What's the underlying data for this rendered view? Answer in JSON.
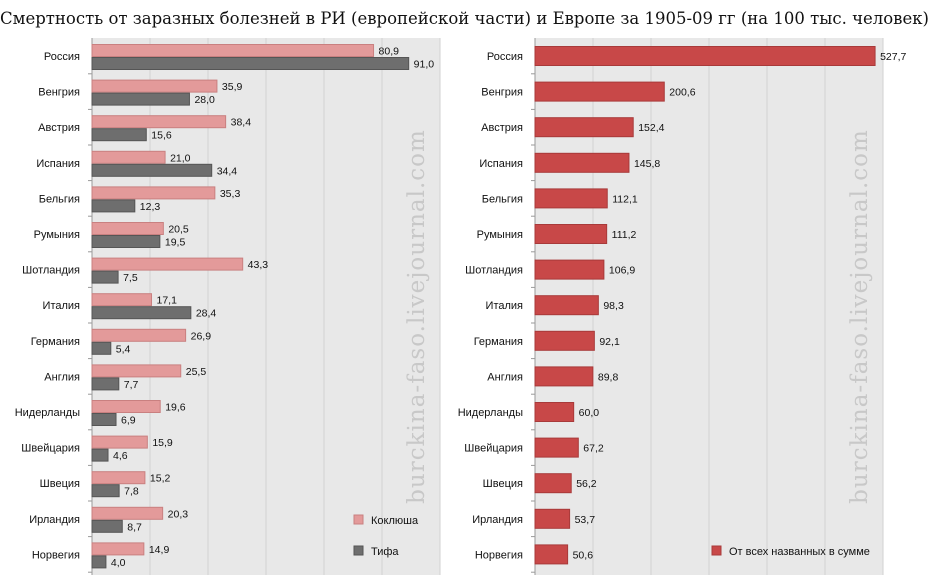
{
  "title": "Смертность от заразных болезней в РИ (европейской части) и Европе за 1905-09 гг (на 100 тыс. человек)",
  "watermark": "burckina-faso.livejournal.com",
  "colors": {
    "pertussis": "#e39a9a",
    "typhus": "#6e6e6e",
    "total": "#c84848",
    "plot_bg": "#e8e8e8",
    "grid": "#d2d2d2"
  },
  "chart_data": [
    {
      "type": "bar",
      "orientation": "horizontal",
      "categories": [
        "Россия",
        "Венгрия",
        "Австрия",
        "Испания",
        "Бельгия",
        "Румыния",
        "Шотландия",
        "Италия",
        "Германия",
        "Англия",
        "Нидерланды",
        "Швейцария",
        "Швеция",
        "Ирландия",
        "Норвегия"
      ],
      "series": [
        {
          "name": "Коклюша",
          "values": [
            80.9,
            35.9,
            38.4,
            21.0,
            35.3,
            20.5,
            43.3,
            17.1,
            26.9,
            25.5,
            19.6,
            15.9,
            15.2,
            20.3,
            14.9
          ]
        },
        {
          "name": "Тифа",
          "values": [
            91.0,
            28.0,
            15.6,
            34.4,
            12.3,
            19.5,
            7.5,
            28.4,
            5.4,
            7.7,
            6.9,
            4.6,
            7.8,
            8.7,
            4.0
          ]
        }
      ],
      "value_labels": [
        [
          "80,9",
          "35,9",
          "38,4",
          "21,0",
          "35,3",
          "20,5",
          "43,3",
          "17,1",
          "26,9",
          "25,5",
          "19,6",
          "15,9",
          "15,2",
          "20,3",
          "14,9"
        ],
        [
          "91,0",
          "28,0",
          "15,6",
          "34,4",
          "12,3",
          "19,5",
          "7,5",
          "28,4",
          "5,4",
          "7,7",
          "6,9",
          "4,6",
          "7,8",
          "8,7",
          "4,0"
        ]
      ],
      "xlim": [
        0,
        100
      ],
      "grid": true,
      "legend_position": "bottom-right"
    },
    {
      "type": "bar",
      "orientation": "horizontal",
      "categories": [
        "Россия",
        "Венгрия",
        "Австрия",
        "Испания",
        "Бельгия",
        "Румыния",
        "Шотландия",
        "Италия",
        "Германия",
        "Англия",
        "Нидерланды",
        "Швейцария",
        "Швеция",
        "Ирландия",
        "Норвегия"
      ],
      "series": [
        {
          "name": "От всех названных в сумме",
          "values": [
            527.7,
            200.6,
            152.4,
            145.8,
            112.1,
            111.2,
            106.9,
            98.3,
            92.1,
            89.8,
            60.0,
            67.2,
            56.2,
            53.7,
            50.6
          ]
        }
      ],
      "value_labels": [
        [
          "527,7",
          "200,6",
          "152,4",
          "145,8",
          "112,1",
          "111,2",
          "106,9",
          "98,3",
          "92,1",
          "89,8",
          "60,0",
          "67,2",
          "56,2",
          "53,7",
          "50,6"
        ]
      ],
      "xlim": [
        0,
        540
      ],
      "grid": true,
      "legend_position": "bottom-right"
    }
  ]
}
